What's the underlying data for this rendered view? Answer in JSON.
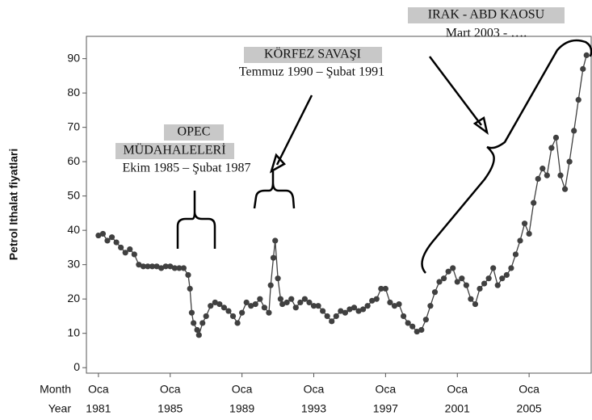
{
  "chart_data": {
    "type": "line",
    "y_label": "Petrol Ithalat fiyatlari",
    "x_row_labels": [
      "Month",
      "Year"
    ],
    "month_label": "Oca",
    "annotations": [
      {
        "title": [
          "OPEC",
          "MÜDAHALELERİ"
        ],
        "subtitle": "Ekim 1985 – Şubat 1987"
      },
      {
        "title": [
          "KÖRFEZ SAVAŞI"
        ],
        "subtitle": "Temmuz 1990 – Şubat 1991"
      },
      {
        "title": [
          "IRAK - ABD KAOSU"
        ],
        "subtitle": "Mart 2003 - …."
      }
    ],
    "color": "#404040",
    "x": [
      1981.0,
      1981.25,
      1981.5,
      1981.75,
      1982.0,
      1982.25,
      1982.5,
      1982.75,
      1983.0,
      1983.25,
      1983.5,
      1983.75,
      1984.0,
      1984.25,
      1984.5,
      1984.75,
      1985.0,
      1985.25,
      1985.5,
      1985.75,
      1986.0,
      1986.1,
      1986.2,
      1986.3,
      1986.5,
      1986.6,
      1986.8,
      1987.0,
      1987.25,
      1987.5,
      1987.75,
      1988.0,
      1988.25,
      1988.5,
      1988.75,
      1989.0,
      1989.25,
      1989.5,
      1989.75,
      1990.0,
      1990.25,
      1990.5,
      1990.6,
      1990.75,
      1990.85,
      1991.0,
      1991.15,
      1991.25,
      1991.5,
      1991.75,
      1992.0,
      1992.25,
      1992.5,
      1992.75,
      1993.0,
      1993.25,
      1993.5,
      1993.75,
      1994.0,
      1994.25,
      1994.5,
      1994.75,
      1995.0,
      1995.25,
      1995.5,
      1995.75,
      1996.0,
      1996.25,
      1996.5,
      1996.75,
      1997.0,
      1997.25,
      1997.5,
      1997.75,
      1998.0,
      1998.25,
      1998.5,
      1998.75,
      1999.0,
      1999.25,
      1999.5,
      1999.75,
      2000.0,
      2000.25,
      2000.5,
      2000.75,
      2001.0,
      2001.25,
      2001.5,
      2001.75,
      2002.0,
      2002.25,
      2002.5,
      2002.75,
      2003.0,
      2003.25,
      2003.5,
      2003.75,
      2004.0,
      2004.25,
      2004.5,
      2004.75,
      2005.0,
      2005.25,
      2005.5,
      2005.75,
      2006.0,
      2006.25,
      2006.5,
      2006.75,
      2007.0,
      2007.25,
      2007.5,
      2007.75,
      2008.0,
      2008.2
    ],
    "values": [
      38.5,
      39,
      37,
      38,
      36.5,
      35,
      33.5,
      34.5,
      33,
      30,
      29.5,
      29.5,
      29.5,
      29.5,
      29,
      29.5,
      29.5,
      29,
      29,
      29,
      27,
      23,
      16,
      13,
      11,
      9.5,
      13,
      15,
      18,
      19,
      18.5,
      17.5,
      16.5,
      15,
      13,
      16,
      19,
      18,
      18.5,
      20,
      17.5,
      16,
      24,
      32,
      37,
      26,
      20,
      18.5,
      19,
      20,
      17.5,
      19,
      20,
      19,
      18,
      18,
      16.5,
      15,
      13.5,
      15,
      16.5,
      16,
      17,
      17.5,
      16.5,
      17,
      18,
      19.5,
      20,
      23,
      23,
      19,
      18,
      18.5,
      15,
      13,
      12,
      10.5,
      11,
      14,
      18,
      22,
      25,
      26,
      28,
      29,
      25,
      26,
      24,
      20,
      18.5,
      23,
      24.5,
      26,
      29,
      24,
      26,
      27,
      29,
      33,
      37,
      42,
      39,
      48,
      55,
      58,
      56,
      64,
      67,
      56,
      52,
      60,
      69,
      78,
      87,
      91
    ],
    "xlim": [
      1980.33,
      2008.46
    ],
    "xticks": [
      1981,
      1985,
      1989,
      1993,
      1997,
      2001,
      2005
    ],
    "ylim": [
      -1.6,
      96.5
    ],
    "yticks": [
      0,
      10,
      20,
      30,
      40,
      50,
      60,
      70,
      80,
      90
    ]
  }
}
